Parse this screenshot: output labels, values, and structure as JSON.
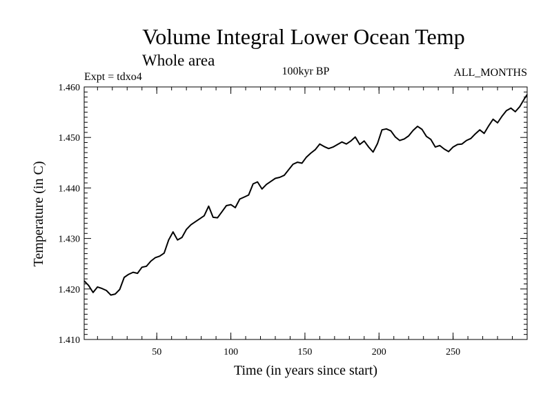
{
  "chart_data": {
    "type": "line",
    "title": "Volume Integral Lower Ocean Temp",
    "subtitle": "Whole area",
    "experiment_label": "Expt = tdxo4",
    "period_label": "100kyr BP",
    "months_label": "ALL_MONTHS",
    "xlabel": "Time (in years since start)",
    "ylabel": "Temperature (in C)",
    "xlim": [
      1,
      300
    ],
    "ylim": [
      1.41,
      1.46
    ],
    "x_ticks": [
      50,
      100,
      150,
      200,
      250
    ],
    "x_tick_labels": [
      "50",
      "100",
      "150",
      "200",
      "250"
    ],
    "y_ticks": [
      1.41,
      1.42,
      1.43,
      1.44,
      1.45,
      1.46
    ],
    "y_tick_labels": [
      "1.410",
      "1.420",
      "1.430",
      "1.440",
      "1.450",
      "1.460"
    ],
    "grid": false,
    "line_color": "#000000",
    "series": [
      {
        "x": [
          1,
          4,
          7,
          10,
          13,
          16,
          19,
          22,
          25,
          28,
          31,
          34,
          37,
          40,
          43,
          46,
          49,
          52,
          55,
          58,
          61,
          64,
          67,
          70,
          73,
          76,
          79,
          82,
          85,
          88,
          91,
          94,
          97,
          100,
          103,
          106,
          109,
          112,
          115,
          118,
          121,
          124,
          127,
          130,
          133,
          136,
          139,
          142,
          145,
          148,
          151,
          154,
          157,
          160,
          163,
          166,
          169,
          172,
          175,
          178,
          181,
          184,
          187,
          190,
          193,
          196,
          199,
          202,
          205,
          208,
          211,
          214,
          217,
          220,
          223,
          226,
          229,
          232,
          235,
          238,
          241,
          244,
          247,
          250,
          253,
          256,
          259,
          262,
          265,
          268,
          271,
          274,
          277,
          280,
          283,
          286,
          289,
          292,
          295,
          298,
          300
        ],
        "y": [
          1.4216,
          1.4207,
          1.4193,
          1.4204,
          1.4201,
          1.4197,
          1.4188,
          1.419,
          1.4199,
          1.4223,
          1.4229,
          1.4233,
          1.4231,
          1.4243,
          1.4245,
          1.4255,
          1.4262,
          1.4265,
          1.4271,
          1.4297,
          1.4313,
          1.4297,
          1.4302,
          1.4318,
          1.4327,
          1.4333,
          1.4339,
          1.4345,
          1.4364,
          1.4342,
          1.4341,
          1.4353,
          1.4365,
          1.4367,
          1.4361,
          1.4378,
          1.4382,
          1.4386,
          1.4408,
          1.4412,
          1.4398,
          1.4407,
          1.4413,
          1.4419,
          1.4421,
          1.4425,
          1.4436,
          1.4447,
          1.4451,
          1.4449,
          1.4461,
          1.4469,
          1.4476,
          1.4487,
          1.4482,
          1.4478,
          1.4481,
          1.4486,
          1.4491,
          1.4487,
          1.4493,
          1.4501,
          1.4486,
          1.4493,
          1.4481,
          1.4471,
          1.4488,
          1.4515,
          1.4517,
          1.4513,
          1.4501,
          1.4494,
          1.4497,
          1.4503,
          1.4514,
          1.4522,
          1.4516,
          1.4502,
          1.4496,
          1.4481,
          1.4484,
          1.4477,
          1.4472,
          1.4481,
          1.4486,
          1.4487,
          1.4494,
          1.4498,
          1.4507,
          1.4515,
          1.4508,
          1.4523,
          1.4536,
          1.4529,
          1.4542,
          1.4553,
          1.4558,
          1.4551,
          1.4561,
          1.4576,
          1.4585
        ]
      }
    ]
  }
}
